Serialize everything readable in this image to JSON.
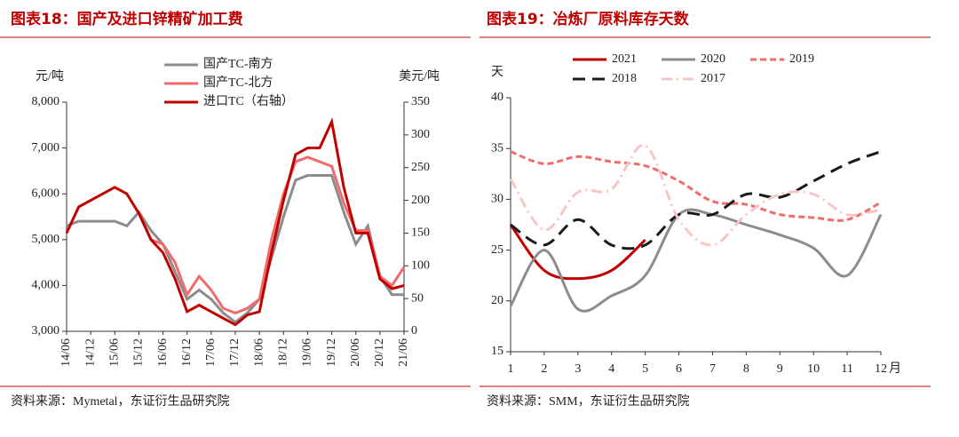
{
  "chart_data": [
    {
      "type": "line",
      "title": "图表18：国产及进口锌精矿加工费",
      "y_label": "元/吨",
      "y2_label": "美元/吨",
      "source": "资料来源：Mymetal，东证衍生品研究院",
      "categories": [
        "14/06",
        null,
        "14/12",
        null,
        "15/06",
        null,
        "15/12",
        null,
        "16/06",
        null,
        "16/12",
        null,
        "17/06",
        null,
        "17/12",
        null,
        "18/06",
        null,
        "18/12",
        null,
        "19/06",
        null,
        "19/12",
        null,
        "20/06",
        null,
        "20/12",
        null,
        "21/06"
      ],
      "ylim": [
        3000,
        8000
      ],
      "yticks": [
        {
          "value": 3000,
          "label": "3,000"
        },
        {
          "value": 4000,
          "label": "4,000"
        },
        {
          "value": 5000,
          "label": "5,000"
        },
        {
          "value": 6000,
          "label": "6,000"
        },
        {
          "value": 7000,
          "label": "7,000"
        },
        {
          "value": 8000,
          "label": "8,000"
        }
      ],
      "y2lim": [
        0,
        350
      ],
      "y2ticks": [
        0,
        50,
        100,
        150,
        200,
        250,
        300,
        350
      ],
      "legend": "upper left",
      "series": [
        {
          "name": "国产TC-南方",
          "color": "#8c8c8c",
          "values": [
            5300,
            5400,
            5400,
            5400,
            5400,
            5300,
            5600,
            5200,
            4900,
            4300,
            3700,
            3900,
            3700,
            3400,
            3200,
            3400,
            3700,
            4600,
            5500,
            6300,
            6400,
            6400,
            6400,
            5600,
            4900,
            5300,
            4200,
            3800,
            3800
          ]
        },
        {
          "name": "国产TC-北方",
          "color": "#f26b6b",
          "values": [
            null,
            null,
            null,
            null,
            null,
            null,
            5600,
            5000,
            4900,
            4500,
            3800,
            4200,
            3900,
            3500,
            3400,
            3500,
            3700,
            5000,
            6000,
            6700,
            6800,
            6700,
            6600,
            5800,
            5200,
            5200,
            4200,
            4000,
            4400
          ]
        },
        {
          "name": "进口TC（右轴）",
          "color": "#c00000",
          "axis": "y2",
          "values": [
            150,
            190,
            200,
            210,
            220,
            210,
            180,
            140,
            120,
            80,
            30,
            40,
            30,
            20,
            10,
            25,
            30,
            120,
            200,
            270,
            280,
            280,
            320,
            220,
            150,
            150,
            80,
            65,
            70
          ]
        }
      ]
    },
    {
      "type": "line",
      "title": "图表19：冶炼厂原料库存天数",
      "y_label": "天",
      "x_label": "月",
      "source": "资料来源：SMM，东证衍生品研究院",
      "smooth": true,
      "x": [
        1,
        2,
        3,
        4,
        5,
        6,
        7,
        8,
        9,
        10,
        11,
        12
      ],
      "xlim": [
        1,
        12
      ],
      "xticks": [
        1,
        2,
        3,
        4,
        5,
        6,
        7,
        8,
        9,
        10,
        11,
        12
      ],
      "ylim": [
        15,
        40
      ],
      "yticks": [
        15,
        20,
        25,
        30,
        35,
        40
      ],
      "legend": "upper center",
      "series": [
        {
          "name": "2021",
          "color": "#c00000",
          "dash": "solid",
          "values": [
            27.5,
            23,
            22.2,
            23,
            26,
            null,
            null,
            null,
            null,
            null,
            null,
            null
          ]
        },
        {
          "name": "2020",
          "color": "#8c8c8c",
          "dash": "solid",
          "values": [
            19.5,
            25,
            19.2,
            20.5,
            22.5,
            28.5,
            28.5,
            27.5,
            26.5,
            25.2,
            22.5,
            28.5
          ]
        },
        {
          "name": "2019",
          "color": "#f26b6b",
          "dash": "dashed",
          "values": [
            34.7,
            33.5,
            34.2,
            33.7,
            33.3,
            31.8,
            29.8,
            29.5,
            28.5,
            28.2,
            28,
            29.7
          ]
        },
        {
          "name": "2018",
          "color": "#1a1a1a",
          "dash": "longdash",
          "values": [
            27.5,
            25.5,
            28,
            25.5,
            25.5,
            28.5,
            28.5,
            30.5,
            30.2,
            31.8,
            33.5,
            34.7
          ]
        },
        {
          "name": "2017",
          "color": "#f9c4c4",
          "dash": "dashdot",
          "values": [
            32,
            27,
            30.7,
            31,
            35.3,
            28,
            25.5,
            28.5,
            30.5,
            30.5,
            28.5,
            29
          ]
        }
      ]
    }
  ]
}
